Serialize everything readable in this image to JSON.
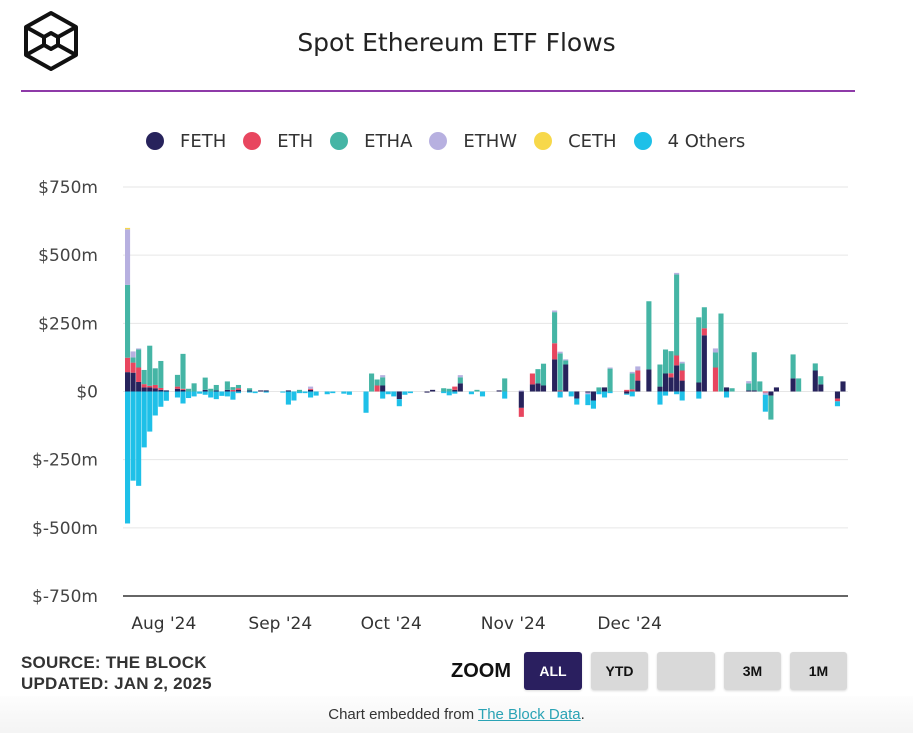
{
  "header": {
    "logo": "the-block-cube-logo",
    "title": "Spot Ethereum ETF Flows"
  },
  "legend": [
    {
      "key": "FETH",
      "label": "FETH",
      "color": "#27235c"
    },
    {
      "key": "ETH",
      "label": "ETH",
      "color": "#e8465f"
    },
    {
      "key": "ETHA",
      "label": "ETHA",
      "color": "#45b5a5"
    },
    {
      "key": "ETHW",
      "label": "ETHW",
      "color": "#b7b0e0"
    },
    {
      "key": "CETH",
      "label": "CETH",
      "color": "#f7d84a"
    },
    {
      "key": "OTHERS",
      "label": "4 Others",
      "color": "#1ec0e8"
    }
  ],
  "footer": {
    "source": "SOURCE: THE BLOCK",
    "updated": "UPDATED: JAN 2, 2025",
    "zoom_label": "ZOOM",
    "zoom_buttons": [
      {
        "label": "ALL",
        "active": true
      },
      {
        "label": "YTD",
        "active": false
      },
      {
        "label": "",
        "active": false
      },
      {
        "label": "3M",
        "active": false
      },
      {
        "label": "1M",
        "active": false
      }
    ],
    "embed_prefix": "Chart embedded from ",
    "embed_link": "The Block Data",
    "embed_suffix": "."
  },
  "chart_data": {
    "type": "bar",
    "stacked": true,
    "title": "Spot Ethereum ETF Flows",
    "xlabel": "",
    "ylabel": "",
    "ylim": [
      -750,
      750
    ],
    "unit": "$m",
    "y_ticks": [
      750,
      500,
      250,
      0,
      -250,
      -500,
      -750
    ],
    "y_tick_labels": [
      "$750m",
      "$500m",
      "$250m",
      "$0",
      "$-250m",
      "$-500m",
      "$-750m"
    ],
    "x_tick_labels": [
      "Aug '24",
      "Sep '24",
      "Oct '24",
      "Nov '24",
      "Dec '24"
    ],
    "x_tick_index": [
      7,
      28,
      48,
      70,
      91
    ],
    "grid": true,
    "legend_position": "top",
    "series_order": [
      "FETH",
      "ETH",
      "ETHA",
      "ETHW",
      "CETH",
      "OTHERS"
    ],
    "bars": [
      {
        "FETH": 71,
        "ETH": 53,
        "ETHA": 267,
        "ETHW": 204,
        "CETH": 5,
        "OTHERS": -484
      },
      {
        "FETH": 69,
        "ETH": 37,
        "ETHA": 19,
        "ETHW": 22,
        "CETH": 0,
        "OTHERS": -327
      },
      {
        "FETH": 35,
        "ETH": 53,
        "ETHA": 66,
        "ETHW": 4,
        "CETH": 0,
        "OTHERS": -346
      },
      {
        "FETH": 15,
        "ETH": 12,
        "ETHA": 52,
        "ETHW": 0,
        "CETH": 0,
        "OTHERS": -205
      },
      {
        "FETH": 15,
        "ETH": 6,
        "ETHA": 147,
        "ETHW": 0,
        "CETH": 0,
        "OTHERS": -147
      },
      {
        "FETH": 12,
        "ETH": 12,
        "ETHA": 61,
        "ETHW": 0,
        "CETH": 0,
        "OTHERS": -88
      },
      {
        "FETH": 6,
        "ETH": 7,
        "ETHA": 99,
        "ETHW": 0,
        "CETH": 0,
        "OTHERS": -56
      },
      {
        "FETH": 4,
        "ETH": 0,
        "ETHA": 0,
        "ETHW": 0,
        "CETH": 0,
        "OTHERS": -34
      },
      {
        "FETH": 0,
        "ETH": 0,
        "ETHA": 0,
        "ETHW": 0,
        "CETH": 0,
        "OTHERS": 0
      },
      {
        "FETH": 10,
        "ETH": 8,
        "ETHA": 43,
        "ETHW": 0,
        "CETH": 0,
        "OTHERS": -22
      },
      {
        "FETH": 6,
        "ETH": 4,
        "ETHA": 128,
        "ETHW": 0,
        "CETH": 0,
        "OTHERS": -44
      },
      {
        "FETH": 0,
        "ETH": 0,
        "ETHA": 10,
        "ETHW": 0,
        "CETH": 0,
        "OTHERS": -24
      },
      {
        "FETH": 0,
        "ETH": 0,
        "ETHA": 30,
        "ETHW": 0,
        "CETH": 0,
        "OTHERS": -18
      },
      {
        "FETH": 0,
        "ETH": 0,
        "ETHA": 0,
        "ETHW": 0,
        "CETH": 0,
        "OTHERS": -8
      },
      {
        "FETH": 6,
        "ETH": 0,
        "ETHA": 45,
        "ETHW": 0,
        "CETH": 0,
        "OTHERS": -12
      },
      {
        "FETH": 0,
        "ETH": 0,
        "ETHA": 10,
        "ETHW": 0,
        "CETH": 0,
        "OTHERS": -22
      },
      {
        "FETH": 4,
        "ETH": 0,
        "ETHA": 20,
        "ETHW": 0,
        "CETH": 0,
        "OTHERS": -28
      },
      {
        "FETH": 0,
        "ETH": 0,
        "ETHA": 0,
        "ETHW": 0,
        "CETH": 0,
        "OTHERS": -16
      },
      {
        "FETH": 6,
        "ETH": 0,
        "ETHA": 31,
        "ETHW": 0,
        "CETH": 0,
        "OTHERS": -18
      },
      {
        "FETH": 0,
        "ETH": 6,
        "ETHA": 10,
        "ETHW": 0,
        "CETH": 0,
        "OTHERS": -30
      },
      {
        "FETH": 6,
        "ETH": 6,
        "ETHA": 12,
        "ETHW": 0,
        "CETH": 0,
        "OTHERS": -6
      },
      {
        "FETH": 0,
        "ETH": 0,
        "ETHA": 0,
        "ETHW": 0,
        "CETH": 0,
        "OTHERS": 0
      },
      {
        "FETH": 4,
        "ETH": 0,
        "ETHA": 8,
        "ETHW": 0,
        "CETH": 0,
        "OTHERS": -4
      },
      {
        "FETH": 0,
        "ETH": 0,
        "ETHA": 0,
        "ETHW": 0,
        "CETH": 0,
        "OTHERS": -6
      },
      {
        "FETH": 4,
        "ETH": 0,
        "ETHA": 0,
        "ETHW": 0,
        "CETH": 0,
        "OTHERS": 0
      },
      {
        "FETH": 4,
        "ETH": 0,
        "ETHA": 0,
        "ETHW": 0,
        "CETH": 0,
        "OTHERS": -4
      },
      {
        "FETH": 0,
        "ETH": 0,
        "ETHA": 0,
        "ETHW": 0,
        "CETH": 0,
        "OTHERS": 0
      },
      {
        "FETH": 0,
        "ETH": 0,
        "ETHA": 0,
        "ETHW": 0,
        "CETH": 0,
        "OTHERS": 0
      },
      {
        "FETH": 0,
        "ETH": 0,
        "ETHA": 0,
        "ETHW": 0,
        "CETH": 0,
        "OTHERS": -4
      },
      {
        "FETH": 4,
        "ETH": 0,
        "ETHA": 0,
        "ETHW": 0,
        "CETH": 0,
        "OTHERS": -48
      },
      {
        "FETH": 0,
        "ETH": 0,
        "ETHA": 0,
        "ETHW": 0,
        "CETH": 0,
        "OTHERS": -33
      },
      {
        "FETH": 0,
        "ETH": 0,
        "ETHA": 6,
        "ETHW": 0,
        "CETH": 0,
        "OTHERS": -6
      },
      {
        "FETH": 0,
        "ETH": 0,
        "ETHA": 0,
        "ETHW": 0,
        "CETH": 0,
        "OTHERS": -6
      },
      {
        "FETH": 6,
        "ETH": 4,
        "ETHA": 0,
        "ETHW": 8,
        "CETH": 0,
        "OTHERS": -22
      },
      {
        "FETH": 0,
        "ETH": 0,
        "ETHA": 0,
        "ETHW": 0,
        "CETH": 0,
        "OTHERS": -15
      },
      {
        "FETH": 0,
        "ETH": 0,
        "ETHA": 0,
        "ETHW": 0,
        "CETH": 0,
        "OTHERS": 0
      },
      {
        "FETH": 0,
        "ETH": 0,
        "ETHA": 0,
        "ETHW": 0,
        "CETH": 0,
        "OTHERS": -10
      },
      {
        "FETH": 0,
        "ETH": 0,
        "ETHA": 0,
        "ETHW": 0,
        "CETH": 0,
        "OTHERS": -6
      },
      {
        "FETH": 0,
        "ETH": 0,
        "ETHA": 0,
        "ETHW": 0,
        "CETH": 0,
        "OTHERS": 0
      },
      {
        "FETH": 0,
        "ETH": 0,
        "ETHA": 0,
        "ETHW": 0,
        "CETH": 0,
        "OTHERS": -8
      },
      {
        "FETH": 0,
        "ETH": 0,
        "ETHA": 0,
        "ETHW": 0,
        "CETH": 0,
        "OTHERS": -12
      },
      {
        "FETH": 0,
        "ETH": 0,
        "ETHA": 0,
        "ETHW": 0,
        "CETH": 0,
        "OTHERS": 0
      },
      {
        "FETH": 0,
        "ETH": 0,
        "ETHA": 0,
        "ETHW": 0,
        "CETH": 0,
        "OTHERS": 0
      },
      {
        "FETH": 0,
        "ETH": 0,
        "ETHA": 0,
        "ETHW": 0,
        "CETH": 0,
        "OTHERS": -78
      },
      {
        "FETH": 0,
        "ETH": 0,
        "ETHA": 66,
        "ETHW": 0,
        "CETH": 0,
        "OTHERS": 0
      },
      {
        "FETH": 0,
        "ETH": 22,
        "ETHA": 22,
        "ETHW": 0,
        "CETH": 0,
        "OTHERS": 0
      },
      {
        "FETH": 22,
        "ETH": 0,
        "ETHA": 30,
        "ETHW": 8,
        "CETH": 0,
        "OTHERS": -26
      },
      {
        "FETH": 0,
        "ETH": 0,
        "ETHA": 0,
        "ETHW": 0,
        "CETH": 0,
        "OTHERS": -10
      },
      {
        "FETH": 0,
        "ETH": 0,
        "ETHA": 0,
        "ETHW": 0,
        "CETH": 0,
        "OTHERS": -18
      },
      {
        "FETH": -28,
        "ETH": 0,
        "ETHA": 0,
        "ETHW": 0,
        "CETH": 0,
        "OTHERS": -26
      },
      {
        "FETH": 0,
        "ETH": 0,
        "ETHA": 0,
        "ETHW": 0,
        "CETH": 0,
        "OTHERS": -12
      },
      {
        "FETH": 0,
        "ETH": 0,
        "ETHA": 0,
        "ETHW": 0,
        "CETH": 0,
        "OTHERS": -6
      },
      {
        "FETH": 0,
        "ETH": 0,
        "ETHA": 0,
        "ETHW": 0,
        "CETH": 0,
        "OTHERS": 0
      },
      {
        "FETH": 0,
        "ETH": 0,
        "ETHA": 0,
        "ETHW": 0,
        "CETH": 0,
        "OTHERS": 0
      },
      {
        "FETH": -4,
        "ETH": 0,
        "ETHA": 0,
        "ETHW": 0,
        "CETH": 0,
        "OTHERS": 0
      },
      {
        "FETH": 6,
        "ETH": 0,
        "ETHA": 0,
        "ETHW": 0,
        "CETH": 0,
        "OTHERS": 0
      },
      {
        "FETH": 0,
        "ETH": 0,
        "ETHA": 0,
        "ETHW": 0,
        "CETH": 0,
        "OTHERS": 0
      },
      {
        "FETH": 0,
        "ETH": 0,
        "ETHA": 12,
        "ETHW": 0,
        "CETH": 0,
        "OTHERS": -6
      },
      {
        "FETH": 0,
        "ETH": 0,
        "ETHA": 10,
        "ETHW": 0,
        "CETH": 0,
        "OTHERS": -14
      },
      {
        "FETH": 6,
        "ETH": 12,
        "ETHA": 0,
        "ETHW": 0,
        "CETH": 0,
        "OTHERS": -8
      },
      {
        "FETH": 30,
        "ETH": 0,
        "ETHA": 22,
        "ETHW": 8,
        "CETH": 0,
        "OTHERS": 0
      },
      {
        "FETH": 0,
        "ETH": 0,
        "ETHA": 0,
        "ETHW": 0,
        "CETH": 0,
        "OTHERS": 0
      },
      {
        "FETH": 0,
        "ETH": 0,
        "ETHA": 0,
        "ETHW": 0,
        "CETH": 0,
        "OTHERS": -10
      },
      {
        "FETH": 0,
        "ETH": 0,
        "ETHA": 6,
        "ETHW": 0,
        "CETH": 0,
        "OTHERS": 0
      },
      {
        "FETH": 0,
        "ETH": 0,
        "ETHA": 0,
        "ETHW": 0,
        "CETH": 0,
        "OTHERS": -18
      },
      {
        "FETH": 0,
        "ETH": 0,
        "ETHA": 0,
        "ETHW": 0,
        "CETH": 0,
        "OTHERS": 0
      },
      {
        "FETH": 0,
        "ETH": 0,
        "ETHA": 0,
        "ETHW": 0,
        "CETH": 0,
        "OTHERS": 0
      },
      {
        "FETH": 4,
        "ETH": 0,
        "ETHA": 0,
        "ETHW": 0,
        "CETH": 0,
        "OTHERS": 0
      },
      {
        "FETH": 0,
        "ETH": 0,
        "ETHA": 48,
        "ETHW": 0,
        "CETH": 0,
        "OTHERS": -26
      },
      {
        "FETH": 0,
        "ETH": 0,
        "ETHA": 0,
        "ETHW": 0,
        "CETH": 0,
        "OTHERS": 0
      },
      {
        "FETH": 0,
        "ETH": 0,
        "ETHA": 0,
        "ETHW": 0,
        "CETH": 0,
        "OTHERS": 0
      },
      {
        "FETH": -60,
        "ETH": -33,
        "ETHA": 0,
        "ETHW": 4,
        "CETH": 0,
        "OTHERS": 0
      },
      {
        "FETH": 0,
        "ETH": 0,
        "ETHA": 0,
        "ETHW": 0,
        "CETH": 0,
        "OTHERS": 0
      },
      {
        "FETH": 26,
        "ETH": 40,
        "ETHA": 0,
        "ETHW": 0,
        "CETH": 0,
        "OTHERS": 0
      },
      {
        "FETH": 30,
        "ETH": 0,
        "ETHA": 52,
        "ETHW": 0,
        "CETH": 0,
        "OTHERS": 0
      },
      {
        "FETH": 22,
        "ETH": 0,
        "ETHA": 80,
        "ETHW": 0,
        "CETH": 0,
        "OTHERS": 0
      },
      {
        "FETH": 0,
        "ETH": 0,
        "ETHA": 0,
        "ETHW": 0,
        "CETH": 0,
        "OTHERS": 0
      },
      {
        "FETH": 118,
        "ETH": 59,
        "ETHA": 114,
        "ETHW": 6,
        "CETH": 0,
        "OTHERS": 0
      },
      {
        "FETH": 0,
        "ETH": 4,
        "ETHA": 136,
        "ETHW": 6,
        "CETH": 0,
        "OTHERS": -22
      },
      {
        "FETH": 99,
        "ETH": 0,
        "ETHA": 15,
        "ETHW": 4,
        "CETH": 0,
        "OTHERS": 0
      },
      {
        "FETH": 0,
        "ETH": 0,
        "ETHA": 0,
        "ETHW": 0,
        "CETH": 0,
        "OTHERS": -18
      },
      {
        "FETH": -26,
        "ETH": 0,
        "ETHA": 0,
        "ETHW": 0,
        "CETH": 0,
        "OTHERS": -22
      },
      {
        "FETH": 0,
        "ETH": 0,
        "ETHA": 0,
        "ETHW": 0,
        "CETH": 0,
        "OTHERS": 0
      },
      {
        "FETH": -4,
        "ETH": 0,
        "ETHA": 0,
        "ETHW": -6,
        "CETH": 0,
        "OTHERS": -40
      },
      {
        "FETH": -33,
        "ETH": 0,
        "ETHA": 0,
        "ETHW": 0,
        "CETH": 0,
        "OTHERS": -30
      },
      {
        "FETH": 0,
        "ETH": 0,
        "ETHA": 15,
        "ETHW": 0,
        "CETH": 0,
        "OTHERS": -10
      },
      {
        "FETH": 15,
        "ETH": 0,
        "ETHA": 0,
        "ETHW": 0,
        "CETH": 0,
        "OTHERS": -22
      },
      {
        "FETH": 0,
        "ETH": 0,
        "ETHA": 84,
        "ETHW": 4,
        "CETH": 0,
        "OTHERS": -6
      },
      {
        "FETH": 0,
        "ETH": 0,
        "ETHA": 0,
        "ETHW": 0,
        "CETH": 0,
        "OTHERS": 0
      },
      {
        "FETH": 0,
        "ETH": 0,
        "ETHA": 0,
        "ETHW": 0,
        "CETH": 0,
        "OTHERS": 0
      },
      {
        "FETH": -8,
        "ETH": 6,
        "ETHA": 0,
        "ETHW": 0,
        "CETH": 0,
        "OTHERS": -4
      },
      {
        "FETH": 0,
        "ETH": 8,
        "ETHA": 58,
        "ETHW": 6,
        "CETH": 0,
        "OTHERS": -18
      },
      {
        "FETH": 40,
        "ETH": 37,
        "ETHA": 0,
        "ETHW": 15,
        "CETH": 0,
        "OTHERS": 0
      },
      {
        "FETH": 0,
        "ETH": 0,
        "ETHA": 0,
        "ETHW": 0,
        "CETH": 0,
        "OTHERS": 0
      },
      {
        "FETH": 81,
        "ETH": 0,
        "ETHA": 250,
        "ETHW": 0,
        "CETH": 0,
        "OTHERS": 0
      },
      {
        "FETH": 0,
        "ETH": 0,
        "ETHA": 0,
        "ETHW": 0,
        "CETH": 0,
        "OTHERS": 0
      },
      {
        "FETH": 18,
        "ETH": 0,
        "ETHA": 81,
        "ETHW": 0,
        "CETH": 0,
        "OTHERS": -48
      },
      {
        "FETH": 66,
        "ETH": 0,
        "ETHA": 88,
        "ETHW": 0,
        "CETH": 0,
        "OTHERS": -15
      },
      {
        "FETH": 52,
        "ETH": 15,
        "ETHA": 81,
        "ETHW": 0,
        "CETH": 0,
        "OTHERS": 0
      },
      {
        "FETH": 96,
        "ETH": 36,
        "ETHA": 297,
        "ETHW": 6,
        "CETH": 0,
        "OTHERS": -10
      },
      {
        "FETH": 40,
        "ETH": 37,
        "ETHA": 26,
        "ETHW": 6,
        "CETH": 0,
        "OTHERS": -33
      },
      {
        "FETH": 0,
        "ETH": 0,
        "ETHA": 0,
        "ETHW": 0,
        "CETH": 0,
        "OTHERS": 0
      },
      {
        "FETH": 0,
        "ETH": 0,
        "ETHA": 0,
        "ETHW": 0,
        "CETH": 0,
        "OTHERS": 0
      },
      {
        "FETH": 33,
        "ETH": 0,
        "ETHA": 239,
        "ETHW": 0,
        "CETH": 0,
        "OTHERS": -26
      },
      {
        "FETH": 206,
        "ETH": 26,
        "ETHA": 77,
        "ETHW": 0,
        "CETH": 0,
        "OTHERS": 0
      },
      {
        "FETH": 0,
        "ETH": 0,
        "ETHA": 0,
        "ETHW": 0,
        "CETH": 0,
        "OTHERS": 0
      },
      {
        "FETH": 0,
        "ETH": 88,
        "ETHA": 55,
        "ETHW": 15,
        "CETH": 0,
        "OTHERS": 0
      },
      {
        "FETH": 0,
        "ETH": 0,
        "ETHA": 286,
        "ETHW": 0,
        "CETH": 0,
        "OTHERS": 0
      },
      {
        "FETH": 15,
        "ETH": 0,
        "ETHA": 0,
        "ETHW": 0,
        "CETH": 0,
        "OTHERS": -22
      },
      {
        "FETH": 0,
        "ETH": 0,
        "ETHA": 12,
        "ETHW": 0,
        "CETH": 0,
        "OTHERS": 0
      },
      {
        "FETH": 0,
        "ETH": 0,
        "ETHA": 0,
        "ETHW": 0,
        "CETH": 0,
        "OTHERS": 0
      },
      {
        "FETH": 0,
        "ETH": 0,
        "ETHA": 0,
        "ETHW": 0,
        "CETH": 0,
        "OTHERS": 0
      },
      {
        "FETH": 4,
        "ETH": 0,
        "ETHA": 26,
        "ETHW": 8,
        "CETH": 0,
        "OTHERS": 0
      },
      {
        "FETH": 4,
        "ETH": 0,
        "ETHA": 140,
        "ETHW": 0,
        "CETH": 0,
        "OTHERS": 0
      },
      {
        "FETH": 0,
        "ETH": 0,
        "ETHA": 37,
        "ETHW": 0,
        "CETH": 0,
        "OTHERS": 0
      },
      {
        "FETH": 0,
        "ETH": -4,
        "ETHA": 0,
        "ETHW": -8,
        "CETH": 0,
        "OTHERS": -62
      },
      {
        "FETH": -15,
        "ETH": 0,
        "ETHA": -88,
        "ETHW": 0,
        "CETH": 0,
        "OTHERS": 0
      },
      {
        "FETH": 15,
        "ETH": 0,
        "ETHA": 0,
        "ETHW": 0,
        "CETH": 0,
        "OTHERS": 0
      },
      {
        "FETH": 0,
        "ETH": 0,
        "ETHA": 0,
        "ETHW": 0,
        "CETH": 0,
        "OTHERS": 0
      },
      {
        "FETH": 0,
        "ETH": 0,
        "ETHA": 0,
        "ETHW": 0,
        "CETH": 0,
        "OTHERS": 0
      },
      {
        "FETH": 48,
        "ETH": 0,
        "ETHA": 88,
        "ETHW": 0,
        "CETH": 0,
        "OTHERS": 0
      },
      {
        "FETH": 0,
        "ETH": 0,
        "ETHA": 48,
        "ETHW": 0,
        "CETH": 0,
        "OTHERS": 0
      },
      {
        "FETH": 0,
        "ETH": 0,
        "ETHA": 0,
        "ETHW": 0,
        "CETH": 0,
        "OTHERS": 0
      },
      {
        "FETH": 0,
        "ETH": 0,
        "ETHA": 0,
        "ETHW": 0,
        "CETH": 0,
        "OTHERS": 0
      },
      {
        "FETH": 77,
        "ETH": 0,
        "ETHA": 26,
        "ETHW": 0,
        "CETH": 0,
        "OTHERS": 0
      },
      {
        "FETH": 26,
        "ETH": 0,
        "ETHA": 30,
        "ETHW": 0,
        "CETH": 0,
        "OTHERS": 0
      },
      {
        "FETH": 0,
        "ETH": 0,
        "ETHA": 0,
        "ETHW": 0,
        "CETH": 0,
        "OTHERS": 0
      },
      {
        "FETH": 0,
        "ETH": 0,
        "ETHA": 0,
        "ETHW": 0,
        "CETH": 0,
        "OTHERS": 0
      },
      {
        "FETH": -26,
        "ETH": -10,
        "ETHA": 0,
        "ETHW": 0,
        "CETH": 0,
        "OTHERS": -18
      },
      {
        "FETH": 37,
        "ETH": 0,
        "ETHA": 0,
        "ETHW": 0,
        "CETH": 0,
        "OTHERS": 0
      }
    ]
  }
}
